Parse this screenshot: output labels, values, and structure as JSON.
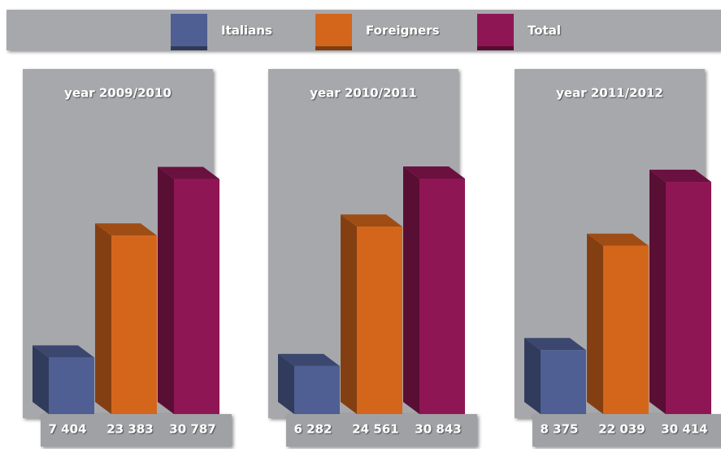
{
  "chart_data": {
    "type": "bar",
    "categories": [
      "year 2009/2010",
      "year  2010/2011",
      "year  2011/2012"
    ],
    "series": [
      {
        "name": "Italians",
        "color": "#4f5f93",
        "values": [
          7404,
          6282,
          8375
        ],
        "value_labels": [
          "7 404",
          "6 282",
          "8 375"
        ]
      },
      {
        "name": "Foreigners",
        "color": "#d4661c",
        "values": [
          23383,
          24561,
          22039
        ],
        "value_labels": [
          "23 383",
          "24 561",
          "22 039"
        ]
      },
      {
        "name": "Total",
        "color": "#8f1654",
        "values": [
          30787,
          30843,
          30414
        ],
        "value_labels": [
          "30 787",
          "30 843",
          "30 414"
        ]
      }
    ]
  }
}
